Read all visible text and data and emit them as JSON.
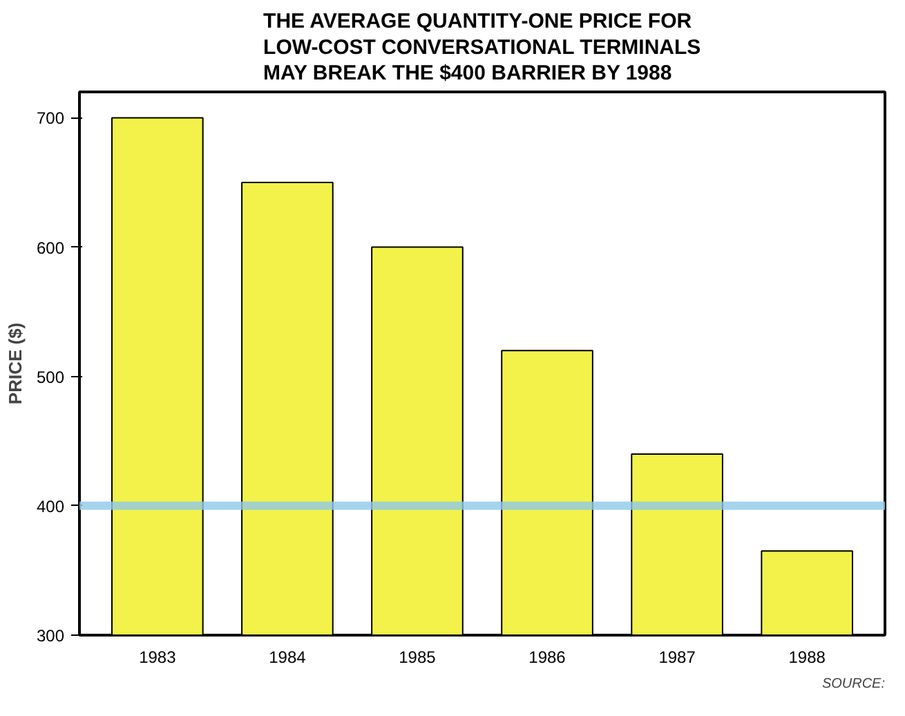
{
  "chart_data": {
    "type": "bar",
    "title": "THE AVERAGE QUANTITY-ONE PRICE FOR\nLOW-COST CONVERSATIONAL TERMINALS\nMAY BREAK THE $400 BARRIER BY 1988",
    "ylabel": "PRICE ($)",
    "categories": [
      "1983",
      "1984",
      "1985",
      "1986",
      "1987",
      "1988"
    ],
    "values": [
      700,
      650,
      600,
      520,
      440,
      365
    ],
    "color": "#f2f24a",
    "ylim": [
      300,
      720
    ],
    "yticks": [
      300,
      400,
      500,
      600,
      700
    ],
    "grid": false,
    "ref_lines": [
      {
        "axis": "y",
        "value": 400,
        "color": "#8ec8e8"
      }
    ],
    "annotations": [
      "SOURCE:"
    ]
  }
}
